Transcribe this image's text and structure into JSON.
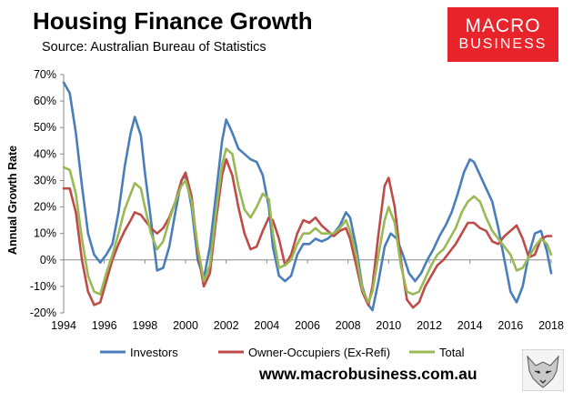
{
  "header": {
    "title": "Housing Finance Growth",
    "subtitle": "Source: Australian Bureau of Statistics"
  },
  "logo": {
    "line1": "MACRO",
    "line2": "BUSINESS"
  },
  "footer": {
    "url": "www.macrobusiness.com.au"
  },
  "colors": {
    "investors": "#4a7ebb",
    "owner_occupiers": "#be4b48",
    "total": "#98b954"
  },
  "chart_data": {
    "type": "line",
    "title": "Housing Finance Growth",
    "xlabel": "",
    "ylabel": "Annual Growth Rate",
    "xlim": [
      1994,
      2018
    ],
    "ylim": [
      -20,
      70
    ],
    "x_ticks": [
      1994,
      1996,
      1998,
      2000,
      2002,
      2004,
      2006,
      2008,
      2010,
      2012,
      2014,
      2016,
      2018
    ],
    "y_ticks": [
      -20,
      -10,
      0,
      10,
      20,
      30,
      40,
      50,
      60,
      70
    ],
    "y_tick_labels": [
      "-20%",
      "-10%",
      "0%",
      "10%",
      "20%",
      "30%",
      "40%",
      "50%",
      "60%",
      "70%"
    ],
    "grid": false,
    "legend": "bottom",
    "series": [
      {
        "name": "Investors",
        "color": "#4a7ebb",
        "points": [
          [
            1994,
            67
          ],
          [
            1994.3,
            63
          ],
          [
            1994.6,
            48
          ],
          [
            1994.9,
            28
          ],
          [
            1995.2,
            10
          ],
          [
            1995.5,
            2
          ],
          [
            1995.8,
            -1
          ],
          [
            1996.1,
            2
          ],
          [
            1996.4,
            6
          ],
          [
            1996.7,
            18
          ],
          [
            1997.0,
            35
          ],
          [
            1997.3,
            48
          ],
          [
            1997.5,
            54
          ],
          [
            1997.8,
            47
          ],
          [
            1998.0,
            33
          ],
          [
            1998.3,
            15
          ],
          [
            1998.6,
            -4
          ],
          [
            1998.9,
            -3
          ],
          [
            1999.2,
            5
          ],
          [
            1999.5,
            18
          ],
          [
            1999.8,
            30
          ],
          [
            2000.0,
            32
          ],
          [
            2000.3,
            20
          ],
          [
            2000.6,
            0
          ],
          [
            2000.9,
            -7
          ],
          [
            2001.2,
            5
          ],
          [
            2001.5,
            25
          ],
          [
            2001.8,
            45
          ],
          [
            2002.0,
            53
          ],
          [
            2002.3,
            48
          ],
          [
            2002.6,
            42
          ],
          [
            2002.9,
            40
          ],
          [
            2003.2,
            38
          ],
          [
            2003.5,
            37
          ],
          [
            2003.8,
            32
          ],
          [
            2004.1,
            20
          ],
          [
            2004.3,
            5
          ],
          [
            2004.6,
            -6
          ],
          [
            2004.9,
            -8
          ],
          [
            2005.2,
            -6
          ],
          [
            2005.5,
            2
          ],
          [
            2005.8,
            6
          ],
          [
            2006.1,
            6
          ],
          [
            2006.4,
            8
          ],
          [
            2006.7,
            7
          ],
          [
            2007.0,
            8
          ],
          [
            2007.3,
            10
          ],
          [
            2007.6,
            13
          ],
          [
            2007.9,
            18
          ],
          [
            2008.1,
            16
          ],
          [
            2008.4,
            5
          ],
          [
            2008.7,
            -10
          ],
          [
            2009.0,
            -17
          ],
          [
            2009.2,
            -19
          ],
          [
            2009.5,
            -8
          ],
          [
            2009.8,
            5
          ],
          [
            2010.1,
            10
          ],
          [
            2010.4,
            8
          ],
          [
            2010.7,
            2
          ],
          [
            2011.0,
            -5
          ],
          [
            2011.3,
            -8
          ],
          [
            2011.6,
            -5
          ],
          [
            2011.9,
            0
          ],
          [
            2012.2,
            4
          ],
          [
            2012.5,
            9
          ],
          [
            2012.8,
            13
          ],
          [
            2013.1,
            18
          ],
          [
            2013.4,
            25
          ],
          [
            2013.7,
            33
          ],
          [
            2014.0,
            38
          ],
          [
            2014.2,
            37
          ],
          [
            2014.5,
            32
          ],
          [
            2014.8,
            27
          ],
          [
            2015.1,
            22
          ],
          [
            2015.4,
            12
          ],
          [
            2015.7,
            0
          ],
          [
            2016.0,
            -12
          ],
          [
            2016.3,
            -16
          ],
          [
            2016.6,
            -10
          ],
          [
            2016.9,
            2
          ],
          [
            2017.2,
            10
          ],
          [
            2017.5,
            11
          ],
          [
            2017.8,
            3
          ],
          [
            2018.0,
            -5
          ]
        ]
      },
      {
        "name": "Owner-Occupiers (Ex-Refi)",
        "color": "#be4b48",
        "points": [
          [
            1994,
            27
          ],
          [
            1994.3,
            27
          ],
          [
            1994.6,
            18
          ],
          [
            1994.9,
            0
          ],
          [
            1995.2,
            -12
          ],
          [
            1995.5,
            -17
          ],
          [
            1995.8,
            -16
          ],
          [
            1996.1,
            -8
          ],
          [
            1996.4,
            0
          ],
          [
            1996.7,
            6
          ],
          [
            1997.0,
            11
          ],
          [
            1997.3,
            15
          ],
          [
            1997.5,
            18
          ],
          [
            1997.8,
            17
          ],
          [
            1998.0,
            15
          ],
          [
            1998.3,
            12
          ],
          [
            1998.6,
            10
          ],
          [
            1998.9,
            12
          ],
          [
            1999.2,
            16
          ],
          [
            1999.5,
            22
          ],
          [
            1999.8,
            30
          ],
          [
            2000.0,
            33
          ],
          [
            2000.3,
            24
          ],
          [
            2000.6,
            3
          ],
          [
            2000.9,
            -10
          ],
          [
            2001.2,
            -5
          ],
          [
            2001.5,
            15
          ],
          [
            2001.8,
            32
          ],
          [
            2002.0,
            38
          ],
          [
            2002.3,
            32
          ],
          [
            2002.6,
            20
          ],
          [
            2002.9,
            10
          ],
          [
            2003.2,
            4
          ],
          [
            2003.5,
            5
          ],
          [
            2003.8,
            11
          ],
          [
            2004.1,
            16
          ],
          [
            2004.3,
            15
          ],
          [
            2004.6,
            8
          ],
          [
            2004.9,
            -2
          ],
          [
            2005.2,
            2
          ],
          [
            2005.5,
            10
          ],
          [
            2005.8,
            15
          ],
          [
            2006.1,
            14
          ],
          [
            2006.4,
            16
          ],
          [
            2006.7,
            13
          ],
          [
            2007.0,
            11
          ],
          [
            2007.3,
            9
          ],
          [
            2007.6,
            11
          ],
          [
            2007.9,
            12
          ],
          [
            2008.1,
            8
          ],
          [
            2008.4,
            -2
          ],
          [
            2008.7,
            -12
          ],
          [
            2009.0,
            -17
          ],
          [
            2009.2,
            -10
          ],
          [
            2009.5,
            10
          ],
          [
            2009.8,
            28
          ],
          [
            2010.0,
            31
          ],
          [
            2010.3,
            20
          ],
          [
            2010.6,
            0
          ],
          [
            2010.9,
            -15
          ],
          [
            2011.2,
            -18
          ],
          [
            2011.5,
            -16
          ],
          [
            2011.8,
            -10
          ],
          [
            2012.1,
            -6
          ],
          [
            2012.4,
            -2
          ],
          [
            2012.7,
            0
          ],
          [
            2013.0,
            3
          ],
          [
            2013.3,
            6
          ],
          [
            2013.6,
            10
          ],
          [
            2013.9,
            14
          ],
          [
            2014.2,
            14
          ],
          [
            2014.5,
            12
          ],
          [
            2014.8,
            11
          ],
          [
            2015.1,
            7
          ],
          [
            2015.4,
            6
          ],
          [
            2015.7,
            9
          ],
          [
            2016.0,
            11
          ],
          [
            2016.3,
            13
          ],
          [
            2016.6,
            8
          ],
          [
            2016.9,
            1
          ],
          [
            2017.2,
            2
          ],
          [
            2017.5,
            8
          ],
          [
            2017.8,
            9
          ],
          [
            2018.0,
            9
          ]
        ]
      },
      {
        "name": "Total",
        "color": "#98b954",
        "points": [
          [
            1994,
            35
          ],
          [
            1994.3,
            34
          ],
          [
            1994.6,
            25
          ],
          [
            1994.9,
            8
          ],
          [
            1995.2,
            -6
          ],
          [
            1995.5,
            -12
          ],
          [
            1995.8,
            -13
          ],
          [
            1996.1,
            -5
          ],
          [
            1996.4,
            2
          ],
          [
            1996.7,
            10
          ],
          [
            1997.0,
            19
          ],
          [
            1997.3,
            25
          ],
          [
            1997.5,
            29
          ],
          [
            1997.8,
            27
          ],
          [
            1998.0,
            20
          ],
          [
            1998.3,
            10
          ],
          [
            1998.6,
            4
          ],
          [
            1998.9,
            7
          ],
          [
            1999.2,
            15
          ],
          [
            1999.5,
            22
          ],
          [
            1999.8,
            28
          ],
          [
            2000.0,
            30
          ],
          [
            2000.3,
            22
          ],
          [
            2000.6,
            5
          ],
          [
            2000.9,
            -8
          ],
          [
            2001.2,
            -2
          ],
          [
            2001.5,
            18
          ],
          [
            2001.8,
            36
          ],
          [
            2002.0,
            42
          ],
          [
            2002.3,
            40
          ],
          [
            2002.6,
            28
          ],
          [
            2002.9,
            19
          ],
          [
            2003.2,
            16
          ],
          [
            2003.5,
            20
          ],
          [
            2003.8,
            25
          ],
          [
            2004.1,
            23
          ],
          [
            2004.3,
            10
          ],
          [
            2004.6,
            -3
          ],
          [
            2004.9,
            -2
          ],
          [
            2005.2,
            0
          ],
          [
            2005.5,
            6
          ],
          [
            2005.8,
            10
          ],
          [
            2006.1,
            10
          ],
          [
            2006.4,
            12
          ],
          [
            2006.7,
            10
          ],
          [
            2007.0,
            10
          ],
          [
            2007.3,
            10
          ],
          [
            2007.6,
            12
          ],
          [
            2007.9,
            15
          ],
          [
            2008.1,
            11
          ],
          [
            2008.4,
            2
          ],
          [
            2008.7,
            -11
          ],
          [
            2009.0,
            -16
          ],
          [
            2009.2,
            -12
          ],
          [
            2009.5,
            2
          ],
          [
            2009.8,
            15
          ],
          [
            2010.0,
            20
          ],
          [
            2010.3,
            14
          ],
          [
            2010.6,
            -2
          ],
          [
            2010.9,
            -12
          ],
          [
            2011.2,
            -13
          ],
          [
            2011.5,
            -12
          ],
          [
            2011.8,
            -7
          ],
          [
            2012.1,
            -2
          ],
          [
            2012.4,
            2
          ],
          [
            2012.7,
            4
          ],
          [
            2013.0,
            8
          ],
          [
            2013.3,
            12
          ],
          [
            2013.6,
            18
          ],
          [
            2013.9,
            22
          ],
          [
            2014.2,
            24
          ],
          [
            2014.5,
            22
          ],
          [
            2014.8,
            16
          ],
          [
            2015.1,
            11
          ],
          [
            2015.4,
            8
          ],
          [
            2015.7,
            5
          ],
          [
            2016.0,
            2
          ],
          [
            2016.3,
            -4
          ],
          [
            2016.6,
            -3
          ],
          [
            2016.9,
            1
          ],
          [
            2017.2,
            5
          ],
          [
            2017.5,
            8
          ],
          [
            2017.8,
            6
          ],
          [
            2018.0,
            2
          ]
        ]
      }
    ]
  }
}
